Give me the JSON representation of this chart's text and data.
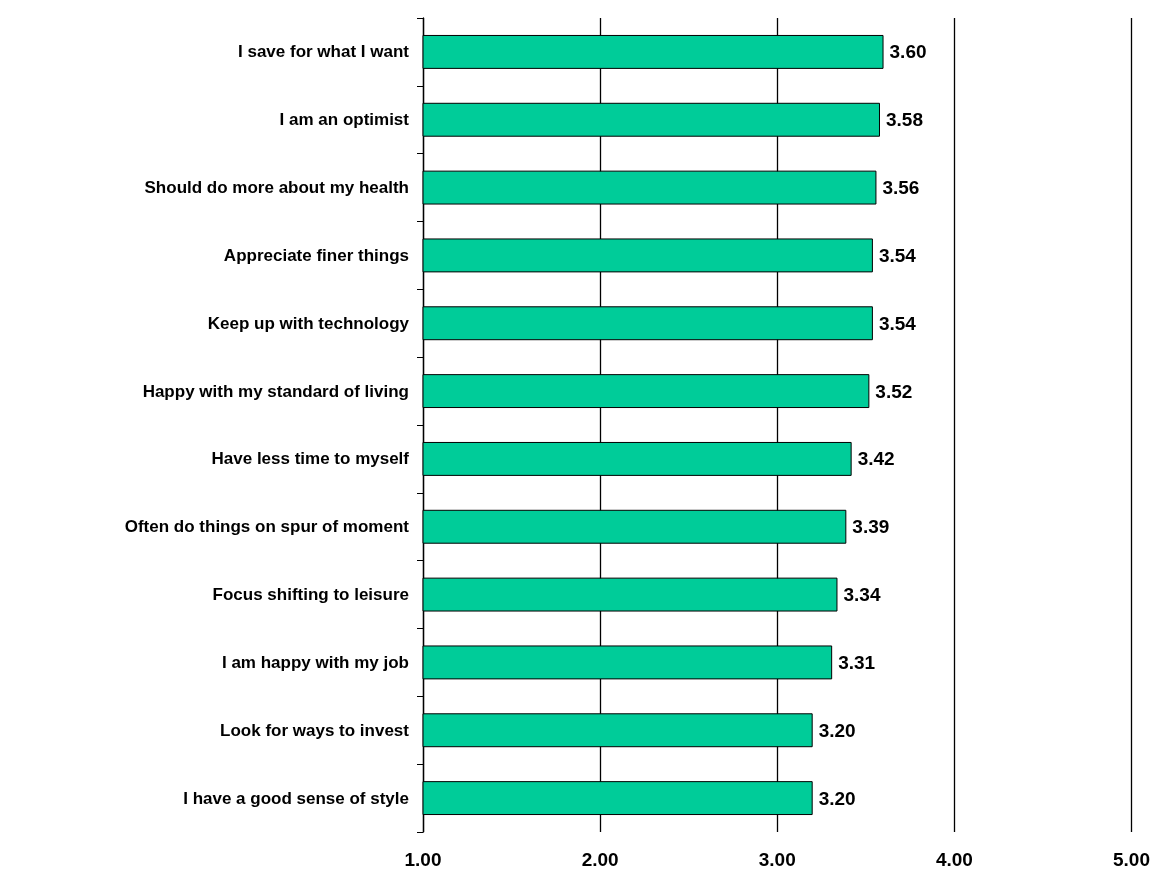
{
  "chart_data": {
    "type": "bar",
    "orientation": "horizontal",
    "categories": [
      "I save for what I want",
      "I am an optimist",
      "Should do more about my health",
      "Appreciate finer things",
      "Keep up with technology",
      "Happy with my standard of living",
      "Have less time to myself",
      "Often do things on spur of moment",
      "Focus shifting to leisure",
      "I am happy with my job",
      "Look for ways to invest",
      "I have a good sense of style"
    ],
    "values": [
      3.6,
      3.58,
      3.56,
      3.54,
      3.54,
      3.52,
      3.42,
      3.39,
      3.34,
      3.31,
      3.2,
      3.2
    ],
    "value_labels": [
      "3.60",
      "3.58",
      "3.56",
      "3.54",
      "3.54",
      "3.52",
      "3.42",
      "3.39",
      "3.34",
      "3.31",
      "3.20",
      "3.20"
    ],
    "color": "#00cc99",
    "xlim": [
      1,
      5
    ],
    "xticks": [
      {
        "value": 1,
        "label": "1.00"
      },
      {
        "value": 2,
        "label": "2.00"
      },
      {
        "value": 3,
        "label": "3.00"
      },
      {
        "value": 4,
        "label": "4.00"
      },
      {
        "value": 5,
        "label": "5.00"
      }
    ],
    "grid": "x"
  }
}
